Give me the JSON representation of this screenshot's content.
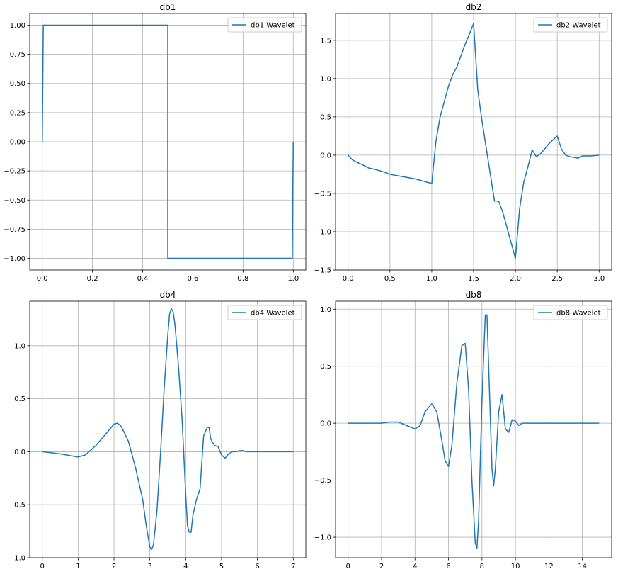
{
  "colors": {
    "line": "#1f77b4",
    "grid": "#b0b0b0",
    "frame": "#000000"
  },
  "chart_data": [
    {
      "type": "line",
      "title": "db1",
      "xlabel": "",
      "ylabel": "",
      "xlim": [
        -0.05,
        1.05
      ],
      "ylim": [
        -1.1,
        1.1
      ],
      "xticks": [
        0.0,
        0.2,
        0.4,
        0.6,
        0.8,
        1.0
      ],
      "xticklabels": [
        "0.0",
        "0.2",
        "0.4",
        "0.6",
        "0.8",
        "1.0"
      ],
      "yticks": [
        -1.0,
        -0.75,
        -0.5,
        -0.25,
        0.0,
        0.25,
        0.5,
        0.75,
        1.0
      ],
      "yticklabels": [
        "−1.00",
        "−0.75",
        "−0.50",
        "−0.25",
        "0.00",
        "0.25",
        "0.50",
        "0.75",
        "1.00"
      ],
      "grid": true,
      "legend": "upper right",
      "series": [
        {
          "name": "db1 Wavelet",
          "x": [
            0.0,
            0.004,
            0.5,
            0.5,
            0.996,
            1.0
          ],
          "y": [
            0.0,
            1.0,
            1.0,
            -1.0,
            -1.0,
            0.0
          ]
        }
      ]
    },
    {
      "type": "line",
      "title": "db2",
      "xlabel": "",
      "ylabel": "",
      "xlim": [
        -0.15,
        3.15
      ],
      "ylim": [
        -1.5,
        1.85
      ],
      "xticks": [
        0.0,
        0.5,
        1.0,
        1.5,
        2.0,
        2.5,
        3.0
      ],
      "xticklabels": [
        "0.0",
        "0.5",
        "1.0",
        "1.5",
        "2.0",
        "2.5",
        "3.0"
      ],
      "yticks": [
        -1.5,
        -1.0,
        -0.5,
        0.0,
        0.5,
        1.0,
        1.5
      ],
      "yticklabels": [
        "−1.5",
        "−1.0",
        "−0.5",
        "0.0",
        "0.5",
        "1.0",
        "1.5"
      ],
      "grid": true,
      "legend": "upper right",
      "series": [
        {
          "name": "db2 Wavelet",
          "x": [
            0.0,
            0.05,
            0.1,
            0.2,
            0.25,
            0.3,
            0.4,
            0.5,
            0.6,
            0.7,
            0.8,
            0.9,
            1.0,
            1.0,
            1.05,
            1.1,
            1.15,
            1.2,
            1.25,
            1.3,
            1.35,
            1.4,
            1.45,
            1.5,
            1.5,
            1.55,
            1.6,
            1.65,
            1.7,
            1.75,
            1.8,
            1.85,
            1.9,
            1.95,
            2.0,
            2.0,
            2.05,
            2.1,
            2.15,
            2.2,
            2.25,
            2.3,
            2.35,
            2.4,
            2.45,
            2.5,
            2.55,
            2.6,
            2.65,
            2.7,
            2.75,
            2.8,
            2.9,
            3.0
          ],
          "y": [
            0.0,
            -0.06,
            -0.09,
            -0.14,
            -0.17,
            -0.18,
            -0.21,
            -0.25,
            -0.27,
            -0.29,
            -0.31,
            -0.34,
            -0.37,
            -0.37,
            0.18,
            0.5,
            0.7,
            0.9,
            1.05,
            1.15,
            1.3,
            1.45,
            1.58,
            1.72,
            1.72,
            0.85,
            0.45,
            0.1,
            -0.25,
            -0.6,
            -0.6,
            -0.75,
            -0.95,
            -1.15,
            -1.35,
            -1.35,
            -0.7,
            -0.35,
            -0.15,
            0.07,
            -0.02,
            0.02,
            0.08,
            0.15,
            0.2,
            0.25,
            0.08,
            0.0,
            -0.02,
            -0.03,
            -0.04,
            -0.01,
            -0.01,
            0.0
          ]
        }
      ]
    },
    {
      "type": "line",
      "title": "db4",
      "xlabel": "",
      "ylabel": "",
      "xlim": [
        -0.35,
        7.35
      ],
      "ylim": [
        -1.0,
        1.42
      ],
      "xticks": [
        0,
        1,
        2,
        3,
        4,
        5,
        6,
        7
      ],
      "xticklabels": [
        "0",
        "1",
        "2",
        "3",
        "4",
        "5",
        "6",
        "7"
      ],
      "yticks": [
        -1.0,
        -0.5,
        0.0,
        0.5,
        1.0
      ],
      "yticklabels": [
        "−1.0",
        "−0.5",
        "0.0",
        "0.5",
        "1.0"
      ],
      "grid": true,
      "legend": "upper right",
      "series": [
        {
          "name": "db4 Wavelet",
          "x": [
            0.0,
            0.5,
            1.0,
            1.2,
            1.5,
            1.8,
            2.0,
            2.1,
            2.2,
            2.4,
            2.6,
            2.8,
            2.9,
            3.0,
            3.05,
            3.1,
            3.2,
            3.3,
            3.4,
            3.5,
            3.55,
            3.6,
            3.65,
            3.7,
            3.8,
            3.9,
            4.0,
            4.05,
            4.1,
            4.15,
            4.2,
            4.3,
            4.4,
            4.5,
            4.6,
            4.65,
            4.7,
            4.8,
            4.9,
            5.0,
            5.1,
            5.2,
            5.3,
            5.4,
            5.5,
            5.6,
            5.7,
            6.0,
            7.0
          ],
          "y": [
            0.0,
            -0.02,
            -0.05,
            -0.03,
            0.06,
            0.18,
            0.26,
            0.27,
            0.24,
            0.1,
            -0.15,
            -0.45,
            -0.7,
            -0.9,
            -0.92,
            -0.88,
            -0.55,
            0.0,
            0.6,
            1.1,
            1.3,
            1.35,
            1.32,
            1.2,
            0.8,
            0.3,
            -0.4,
            -0.7,
            -0.76,
            -0.76,
            -0.6,
            -0.45,
            -0.35,
            0.15,
            0.23,
            0.23,
            0.12,
            0.06,
            0.05,
            -0.03,
            -0.06,
            -0.02,
            0.0,
            0.0,
            0.01,
            0.01,
            0.0,
            0.0,
            0.0
          ]
        }
      ]
    },
    {
      "type": "line",
      "title": "db8",
      "xlabel": "",
      "ylabel": "",
      "xlim": [
        -0.75,
        15.75
      ],
      "ylim": [
        -1.18,
        1.07
      ],
      "xticks": [
        0,
        2,
        4,
        6,
        8,
        10,
        12,
        14
      ],
      "xticklabels": [
        "0",
        "2",
        "4",
        "6",
        "8",
        "10",
        "12",
        "14"
      ],
      "yticks": [
        -1.0,
        -0.5,
        0.0,
        0.5,
        1.0
      ],
      "yticklabels": [
        "−1.0",
        "−0.5",
        "0.0",
        "0.5",
        "1.0"
      ],
      "grid": true,
      "legend": "upper right",
      "series": [
        {
          "name": "db8 Wavelet",
          "x": [
            0,
            1,
            2,
            2.5,
            3.0,
            3.5,
            4.0,
            4.3,
            4.6,
            5.0,
            5.3,
            5.6,
            5.8,
            6.0,
            6.2,
            6.5,
            6.8,
            7.0,
            7.2,
            7.4,
            7.6,
            7.7,
            7.8,
            8.0,
            8.2,
            8.3,
            8.4,
            8.6,
            8.7,
            8.8,
            9.0,
            9.2,
            9.4,
            9.6,
            9.8,
            10.0,
            10.2,
            10.4,
            10.6,
            11,
            12,
            13,
            14,
            15
          ],
          "y": [
            0.0,
            0.0,
            0.0,
            0.01,
            0.01,
            -0.02,
            -0.05,
            -0.02,
            0.1,
            0.17,
            0.1,
            -0.15,
            -0.33,
            -0.38,
            -0.2,
            0.35,
            0.68,
            0.7,
            0.3,
            -0.5,
            -1.05,
            -1.1,
            -0.85,
            0.2,
            0.95,
            0.95,
            0.5,
            -0.4,
            -0.55,
            -0.4,
            0.1,
            0.25,
            -0.05,
            -0.08,
            0.03,
            0.02,
            -0.02,
            0.0,
            0.0,
            0.0,
            0.0,
            0.0,
            0.0,
            0.0
          ]
        }
      ]
    }
  ]
}
